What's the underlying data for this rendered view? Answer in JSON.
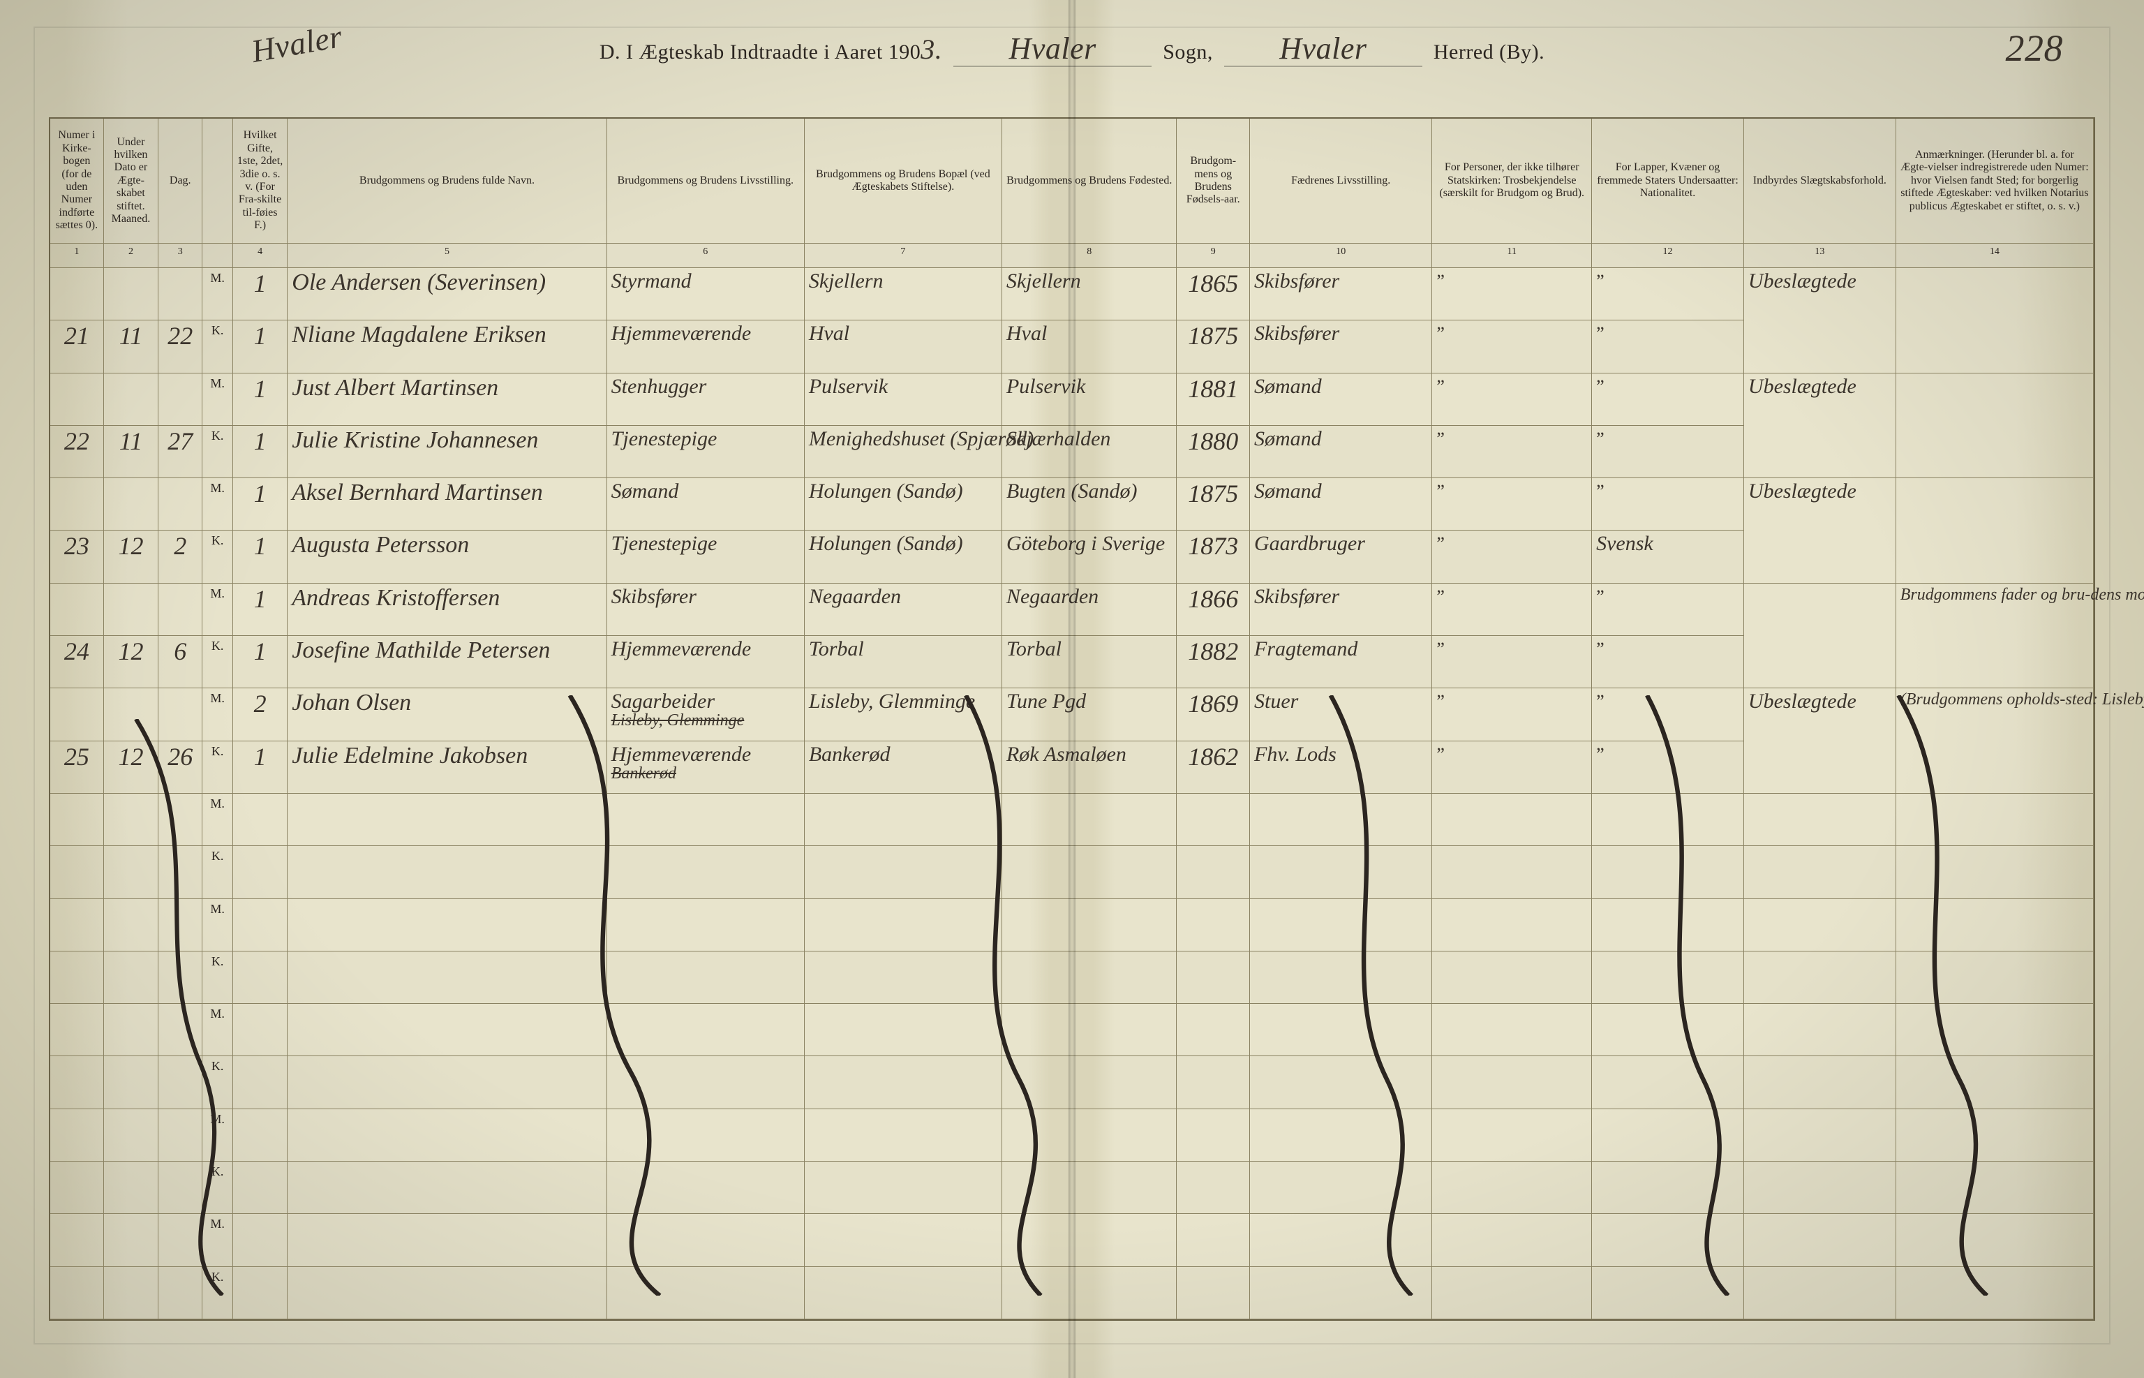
{
  "header": {
    "prefix": "D. I Ægteskab Indtraadte i Aaret 190",
    "year_suffix": "3.",
    "sogn_label": "Sogn,",
    "herred_label": "Herred (By).",
    "sogn_value": "Hvaler",
    "herred_value": "Hvaler",
    "page_number": "228",
    "top_margin_note": "Hvaler"
  },
  "columns": [
    {
      "n": "1",
      "label": "Numer i Kirke-bogen (for de uden Numer indførte sættes 0)."
    },
    {
      "n": "2",
      "label": "Under hvilken Dato er Ægte-skabet stiftet.\nMaaned."
    },
    {
      "n": "3",
      "label": "Dag."
    },
    {
      "n": "",
      "label": ""
    },
    {
      "n": "4",
      "label": "Hvilket Gifte, 1ste, 2det, 3die o. s. v. (For Fra-skilte til-føies F.)"
    },
    {
      "n": "5",
      "label": "Brudgommens og Brudens fulde Navn."
    },
    {
      "n": "6",
      "label": "Brudgommens og Brudens Livsstilling."
    },
    {
      "n": "7",
      "label": "Brudgommens og Brudens Bopæl (ved Ægteskabets Stiftelse)."
    },
    {
      "n": "8",
      "label": "Brudgommens og Brudens Fødested."
    },
    {
      "n": "9",
      "label": "Brudgom-mens og Brudens Fødsels-aar."
    },
    {
      "n": "10",
      "label": "Fædrenes Livsstilling."
    },
    {
      "n": "11",
      "label": "For Personer, der ikke tilhører Statskirken: Trosbekjendelse (særskilt for Brudgom og Brud)."
    },
    {
      "n": "12",
      "label": "For Lapper, Kvæner og fremmede Staters Undersaatter: Nationalitet."
    },
    {
      "n": "13",
      "label": "Indbyrdes Slægtskabsforhold."
    },
    {
      "n": "14",
      "label": "Anmærkninger. (Herunder bl. a. for Ægte-vielser indregistrerede uden Numer: hvor Vielsen fandt Sted; for borgerlig stiftede Ægteskaber: ved hvilken Notarius publicus Ægteskabet er stiftet, o. s. v.)"
    }
  ],
  "mk_labels": {
    "groom": "M.",
    "bride": "K."
  },
  "entries": [
    {
      "no": "21",
      "month": "11",
      "day": "22",
      "groom": {
        "gifte": "1",
        "name": "Ole Andersen (Severinsen)",
        "occ": "Styrmand",
        "res": "Skjellern",
        "birthplace": "Skjellern",
        "year": "1865",
        "father": "Skibsfører",
        "trosk": "\"",
        "nat": "\""
      },
      "bride": {
        "gifte": "1",
        "name": "Nliane Magdalene Eriksen",
        "occ": "Hjemmeværende",
        "res": "Hval",
        "birthplace": "Hval",
        "year": "1875",
        "father": "Skibsfører",
        "trosk": "\"",
        "nat": "\""
      },
      "kinship": "Ubeslægtede",
      "remark": ""
    },
    {
      "no": "22",
      "month": "11",
      "day": "27",
      "groom": {
        "gifte": "1",
        "name": "Just Albert Martinsen",
        "occ": "Stenhugger",
        "res": "Pulservik",
        "birthplace": "Pulservik",
        "year": "1881",
        "father": "Sømand",
        "trosk": "\"",
        "nat": "\""
      },
      "bride": {
        "gifte": "1",
        "name": "Julie Kristine Johannesen",
        "occ": "Tjenestepige",
        "res": "Menighedshuset (Spjærød)",
        "birthplace": "Skjærhalden",
        "year": "1880",
        "father": "Sømand",
        "trosk": "\"",
        "nat": "\""
      },
      "kinship": "Ubeslægtede",
      "remark": ""
    },
    {
      "no": "23",
      "month": "12",
      "day": "2",
      "groom": {
        "gifte": "1",
        "name": "Aksel Bernhard Martinsen",
        "occ": "Sømand",
        "res": "Holungen (Sandø)",
        "birthplace": "Bugten (Sandø)",
        "year": "1875",
        "father": "Sømand",
        "trosk": "\"",
        "nat": "\""
      },
      "bride": {
        "gifte": "1",
        "name": "Augusta Petersson",
        "occ": "Tjenestepige",
        "res": "Holungen (Sandø)",
        "birthplace": "Göteborg i Sverige",
        "year": "1873",
        "father": "Gaardbruger",
        "trosk": "\"",
        "nat": "Svensk"
      },
      "kinship": "Ubeslægtede",
      "remark": ""
    },
    {
      "no": "24",
      "month": "12",
      "day": "6",
      "groom": {
        "gifte": "1",
        "name": "Andreas Kristoffersen",
        "occ": "Skibsfører",
        "res": "Negaarden",
        "birthplace": "Negaarden",
        "year": "1866",
        "father": "Skibsfører",
        "trosk": "\"",
        "nat": "\""
      },
      "bride": {
        "gifte": "1",
        "name": "Josefine Mathilde Petersen",
        "occ": "Hjemmeværende",
        "res": "Torbal",
        "birthplace": "Torbal",
        "year": "1882",
        "father": "Fragtemand",
        "trosk": "\"",
        "nat": "\""
      },
      "kinship": "",
      "remark": "Brudgommens fader og bru-dens mormor var søskende"
    },
    {
      "no": "25",
      "month": "12",
      "day": "26",
      "groom": {
        "gifte": "2",
        "name": "Johan Olsen",
        "occ": "Sagarbeider",
        "occ_struck": "Lisleby, Glemminge",
        "res": "Lisleby, Glemminge",
        "res_note": "",
        "birthplace": "Tune Pgd",
        "year": "1869",
        "father": "Stuer",
        "trosk": "\"",
        "nat": "\""
      },
      "bride": {
        "gifte": "1",
        "name": "Julie Edelmine Jakobsen",
        "occ": "Hjemmeværende",
        "occ_struck": "Bankerød",
        "res": "Bankerød",
        "res_struck": "",
        "birthplace": "Røk Asmaløen",
        "year": "1862",
        "father": "Fhv. Lods",
        "trosk": "\"",
        "nat": "\""
      },
      "kinship": "Ubeslægtede",
      "remark": "(Brudgommens opholds-sted: Lisleby, Glemminge. Brudens: Bankerød)"
    }
  ],
  "blank_pairs": 5
}
